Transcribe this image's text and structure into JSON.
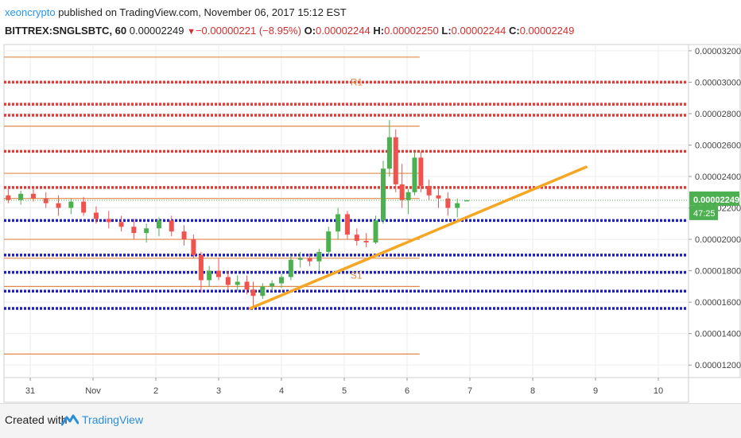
{
  "header": {
    "author": "xeoncrypto",
    "published": " published on TradingView.com, November 06, 2017 15:12 EST",
    "symbol": "BITTREX:SNGLSBTC, 60",
    "last": "0.00002249",
    "change": "−0.00000221 (−8.95%)",
    "o_label": "O:",
    "o_value": "0.00002244",
    "h_label": "H:",
    "h_value": "0.00002250",
    "l_label": "L:",
    "l_value": "0.00002244",
    "c_label": "C:",
    "c_value": "0.00002249"
  },
  "footer": {
    "created_with": "Created with",
    "brand": "TradingView"
  },
  "colors": {
    "up": "#4caf50",
    "down": "#ef5350",
    "resistance": "#e53935",
    "support": "#1e1ec8",
    "level": "#e08a4a",
    "trend": "#f5a623",
    "price_badge": "#4caf50"
  },
  "chart_data": {
    "type": "candlestick",
    "symbol": "BITTREX:SNGLSBTC",
    "interval": "60",
    "x_ticks": [
      "31",
      "Nov",
      "2",
      "3",
      "4",
      "5",
      "6",
      "7",
      "8",
      "9",
      "10"
    ],
    "y_ticks": [
      "0.00001200",
      "0.00001400",
      "0.00001600",
      "0.00001800",
      "0.00002000",
      "0.00002200",
      "0.00002400",
      "0.00002600",
      "0.00002800",
      "0.00003000",
      "0.00003200"
    ],
    "ylim": [
      1.12e-05,
      3.24e-05
    ],
    "xlim": [
      -0.4,
      10.5
    ],
    "last_price_label": "0.00002249",
    "last_price": 2.249e-05,
    "countdown": "47:25",
    "resistance_lines": [
      3e-05,
      2.86e-05,
      2.79e-05,
      2.56e-05,
      2.33e-05
    ],
    "support_lines": [
      2.12e-05,
      1.9e-05,
      1.79e-05,
      1.67e-05,
      1.56e-05
    ],
    "orange_levels": [
      3.16e-05,
      2.72e-05,
      2.42e-05,
      2.26e-05,
      2e-05,
      1.88e-05,
      1.7e-05,
      1.27e-05
    ],
    "level_labels": [
      {
        "text": "R1",
        "x": 5.1,
        "y": 2.98e-05
      },
      {
        "text": "S1",
        "x": 5.1,
        "y": 1.75e-05
      }
    ],
    "trendline": {
      "x": [
        3.5,
        8.85
      ],
      "y": [
        1.56e-05,
        2.46e-05
      ]
    },
    "candles": [
      {
        "x": -0.35,
        "o": 2.28e-05,
        "h": 2.33e-05,
        "l": 2.23e-05,
        "c": 2.25e-05
      },
      {
        "x": -0.15,
        "o": 2.25e-05,
        "h": 2.31e-05,
        "l": 2.22e-05,
        "c": 2.29e-05
      },
      {
        "x": 0.05,
        "o": 2.29e-05,
        "h": 2.32e-05,
        "l": 2.24e-05,
        "c": 2.26e-05
      },
      {
        "x": 0.25,
        "o": 2.26e-05,
        "h": 2.3e-05,
        "l": 2.2e-05,
        "c": 2.23e-05
      },
      {
        "x": 0.45,
        "o": 2.23e-05,
        "h": 2.28e-05,
        "l": 2.15e-05,
        "c": 2.2e-05
      },
      {
        "x": 0.65,
        "o": 2.2e-05,
        "h": 2.26e-05,
        "l": 2.16e-05,
        "c": 2.24e-05
      },
      {
        "x": 0.85,
        "o": 2.24e-05,
        "h": 2.27e-05,
        "l": 2.15e-05,
        "c": 2.17e-05
      },
      {
        "x": 1.05,
        "o": 2.17e-05,
        "h": 2.21e-05,
        "l": 2.1e-05,
        "c": 2.13e-05
      },
      {
        "x": 1.25,
        "o": 2.13e-05,
        "h": 2.18e-05,
        "l": 2.07e-05,
        "c": 2.11e-05
      },
      {
        "x": 1.45,
        "o": 2.11e-05,
        "h": 2.15e-05,
        "l": 2.05e-05,
        "c": 2.08e-05
      },
      {
        "x": 1.65,
        "o": 2.08e-05,
        "h": 2.13e-05,
        "l": 2e-05,
        "c": 2.04e-05
      },
      {
        "x": 1.85,
        "o": 2.04e-05,
        "h": 2.1e-05,
        "l": 1.98e-05,
        "c": 2.07e-05
      },
      {
        "x": 2.05,
        "o": 2.07e-05,
        "h": 2.14e-05,
        "l": 2.02e-05,
        "c": 2.12e-05
      },
      {
        "x": 2.25,
        "o": 2.12e-05,
        "h": 2.15e-05,
        "l": 2.02e-05,
        "c": 2.05e-05
      },
      {
        "x": 2.45,
        "o": 2.05e-05,
        "h": 2.09e-05,
        "l": 1.96e-05,
        "c": 2e-05
      },
      {
        "x": 2.6,
        "o": 2e-05,
        "h": 2.03e-05,
        "l": 1.88e-05,
        "c": 1.9e-05
      },
      {
        "x": 2.72,
        "o": 1.9e-05,
        "h": 1.92e-05,
        "l": 1.66e-05,
        "c": 1.74e-05
      },
      {
        "x": 2.85,
        "o": 1.74e-05,
        "h": 1.83e-05,
        "l": 1.7e-05,
        "c": 1.8e-05
      },
      {
        "x": 3.0,
        "o": 1.8e-05,
        "h": 1.88e-05,
        "l": 1.74e-05,
        "c": 1.76e-05
      },
      {
        "x": 3.15,
        "o": 1.76e-05,
        "h": 1.8e-05,
        "l": 1.68e-05,
        "c": 1.71e-05
      },
      {
        "x": 3.3,
        "o": 1.71e-05,
        "h": 1.77e-05,
        "l": 1.67e-05,
        "c": 1.73e-05
      },
      {
        "x": 3.45,
        "o": 1.73e-05,
        "h": 1.77e-05,
        "l": 1.65e-05,
        "c": 1.68e-05
      },
      {
        "x": 3.55,
        "o": 1.68e-05,
        "h": 1.73e-05,
        "l": 1.56e-05,
        "c": 1.64e-05
      },
      {
        "x": 3.7,
        "o": 1.64e-05,
        "h": 1.72e-05,
        "l": 1.62e-05,
        "c": 1.7e-05
      },
      {
        "x": 3.85,
        "o": 1.7e-05,
        "h": 1.74e-05,
        "l": 1.67e-05,
        "c": 1.72e-05
      },
      {
        "x": 4.0,
        "o": 1.72e-05,
        "h": 1.78e-05,
        "l": 1.69e-05,
        "c": 1.76e-05
      },
      {
        "x": 4.15,
        "o": 1.76e-05,
        "h": 1.9e-05,
        "l": 1.74e-05,
        "c": 1.87e-05
      },
      {
        "x": 4.3,
        "o": 1.87e-05,
        "h": 1.92e-05,
        "l": 1.82e-05,
        "c": 1.88e-05
      },
      {
        "x": 4.45,
        "o": 1.88e-05,
        "h": 1.91e-05,
        "l": 1.83e-05,
        "c": 1.86e-05
      },
      {
        "x": 4.6,
        "o": 1.86e-05,
        "h": 1.94e-05,
        "l": 1.8e-05,
        "c": 1.92e-05
      },
      {
        "x": 4.75,
        "o": 1.92e-05,
        "h": 2.08e-05,
        "l": 1.9e-05,
        "c": 2.05e-05
      },
      {
        "x": 4.9,
        "o": 2.05e-05,
        "h": 2.2e-05,
        "l": 2e-05,
        "c": 2.16e-05
      },
      {
        "x": 5.05,
        "o": 2.16e-05,
        "h": 2.18e-05,
        "l": 2e-05,
        "c": 2.03e-05
      },
      {
        "x": 5.2,
        "o": 2.03e-05,
        "h": 2.07e-05,
        "l": 1.96e-05,
        "c": 1.99e-05
      },
      {
        "x": 5.35,
        "o": 1.99e-05,
        "h": 2.04e-05,
        "l": 1.95e-05,
        "c": 1.98e-05
      },
      {
        "x": 5.5,
        "o": 1.98e-05,
        "h": 2.15e-05,
        "l": 1.97e-05,
        "c": 2.12e-05
      },
      {
        "x": 5.62,
        "o": 2.12e-05,
        "h": 2.5e-05,
        "l": 2.1e-05,
        "c": 2.45e-05
      },
      {
        "x": 5.72,
        "o": 2.45e-05,
        "h": 2.76e-05,
        "l": 2.4e-05,
        "c": 2.65e-05
      },
      {
        "x": 5.82,
        "o": 2.65e-05,
        "h": 2.7e-05,
        "l": 2.3e-05,
        "c": 2.35e-05
      },
      {
        "x": 5.92,
        "o": 2.35e-05,
        "h": 2.48e-05,
        "l": 2.2e-05,
        "c": 2.25e-05
      },
      {
        "x": 6.02,
        "o": 2.25e-05,
        "h": 2.32e-05,
        "l": 2.16e-05,
        "c": 2.3e-05
      },
      {
        "x": 6.12,
        "o": 2.3e-05,
        "h": 2.56e-05,
        "l": 2.28e-05,
        "c": 2.52e-05
      },
      {
        "x": 6.22,
        "o": 2.52e-05,
        "h": 2.56e-05,
        "l": 2.3e-05,
        "c": 2.34e-05
      },
      {
        "x": 6.35,
        "o": 2.34e-05,
        "h": 2.38e-05,
        "l": 2.25e-05,
        "c": 2.28e-05
      },
      {
        "x": 6.5,
        "o": 2.28e-05,
        "h": 2.32e-05,
        "l": 2.2e-05,
        "c": 2.26e-05
      },
      {
        "x": 6.65,
        "o": 2.26e-05,
        "h": 2.3e-05,
        "l": 2.15e-05,
        "c": 2.2e-05
      },
      {
        "x": 6.8,
        "o": 2.2e-05,
        "h": 2.26e-05,
        "l": 2.14e-05,
        "c": 2.23e-05
      },
      {
        "x": 6.95,
        "o": 2.244e-05,
        "h": 2.25e-05,
        "l": 2.244e-05,
        "c": 2.249e-05
      }
    ]
  }
}
